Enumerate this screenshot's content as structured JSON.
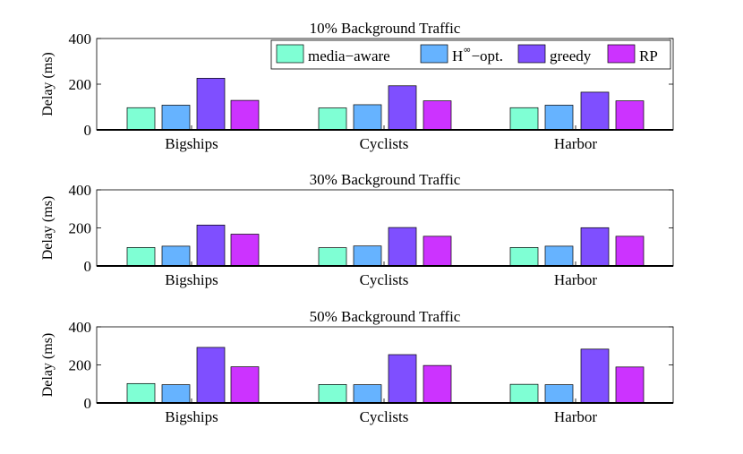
{
  "chart_data": {
    "type": "bar",
    "ylabel": "Delay (ms)",
    "ylim": [
      0,
      400
    ],
    "yticks": [
      0,
      200,
      400
    ],
    "categories": [
      "Bigships",
      "Cyclists",
      "Harbor"
    ],
    "legend": {
      "placement": "top-right",
      "entries": [
        {
          "key": "media-aware",
          "text": "media−aware"
        },
        {
          "key": "hinf-opt",
          "text_main": "H",
          "text_sup": "∞",
          "text_rest": "−opt."
        },
        {
          "key": "greedy",
          "text": "greedy"
        },
        {
          "key": "rp",
          "text": "RP"
        }
      ]
    },
    "series_colors": [
      "#7fffd4",
      "#66b3ff",
      "#7f4fff",
      "#cc33ff"
    ],
    "panels": [
      {
        "title": "10% Background Traffic",
        "series": [
          {
            "name": "media-aware",
            "values": [
              97,
              96,
              97
            ]
          },
          {
            "name": "H∞-opt.",
            "values": [
              108,
              110,
              108
            ]
          },
          {
            "name": "greedy",
            "values": [
              226,
              193,
              165
            ]
          },
          {
            "name": "RP",
            "values": [
              129,
              127,
              127
            ]
          }
        ]
      },
      {
        "title": "30% Background Traffic",
        "series": [
          {
            "name": "media-aware",
            "values": [
              97,
              96,
              97
            ]
          },
          {
            "name": "H∞-opt.",
            "values": [
              104,
              105,
              104
            ]
          },
          {
            "name": "greedy",
            "values": [
              215,
              202,
              201
            ]
          },
          {
            "name": "RP",
            "values": [
              167,
              156,
              156
            ]
          }
        ]
      },
      {
        "title": "50% Background Traffic",
        "series": [
          {
            "name": "media-aware",
            "values": [
              102,
              97,
              98
            ]
          },
          {
            "name": "H∞-opt.",
            "values": [
              96,
              96,
              96
            ]
          },
          {
            "name": "greedy",
            "values": [
              292,
              254,
              283
            ]
          },
          {
            "name": "RP",
            "values": [
              190,
              197,
              189
            ]
          }
        ]
      }
    ]
  }
}
